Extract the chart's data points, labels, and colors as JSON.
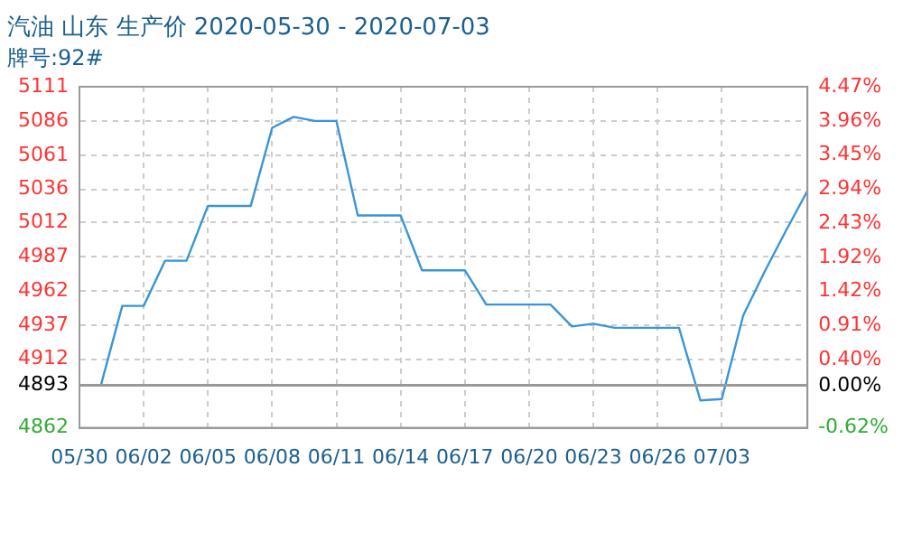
{
  "chart_data": {
    "type": "line",
    "title": "汽油 山东 生产价 2020-05-30 - 2020-07-03",
    "subtitle": "牌号:92#",
    "categories": [
      "05/30",
      null,
      null,
      "06/02",
      null,
      null,
      "06/05",
      null,
      null,
      "06/08",
      null,
      null,
      "06/11",
      null,
      null,
      "06/14",
      null,
      null,
      "06/17",
      null,
      null,
      "06/20",
      null,
      null,
      "06/23",
      null,
      null,
      "06/26",
      null,
      null,
      "07/03",
      null,
      null,
      null,
      null
    ],
    "series": [
      {
        "color": "#3a95d5",
        "values": [
          4893,
          4893,
          4951,
          4951,
          4984,
          4984,
          5024,
          5024,
          5024,
          5081,
          5089,
          5086,
          5086,
          5017,
          5017,
          5017,
          4977,
          4977,
          4977,
          4952,
          4952,
          4952,
          4952,
          4936,
          4938,
          4935,
          4935,
          4935,
          4935,
          4882,
          4883,
          4944,
          4976,
          5006,
          5035
        ]
      }
    ],
    "ylim": [
      4862,
      5111
    ],
    "yticks": [
      4862,
      4893,
      4912,
      4937,
      4962,
      4987,
      5012,
      5036,
      5061,
      5086,
      5111
    ],
    "y2lim": [
      -0.62,
      4.47
    ],
    "y2ticks": [
      {
        "value": -0.62,
        "label": "-0.62%"
      },
      {
        "value": 0,
        "label": "0.00%"
      },
      {
        "value": 0.4,
        "label": "0.40%"
      },
      {
        "value": 0.91,
        "label": "0.91%"
      },
      {
        "value": 1.42,
        "label": "1.42%"
      },
      {
        "value": 1.92,
        "label": "1.92%"
      },
      {
        "value": 2.43,
        "label": "2.43%"
      },
      {
        "value": 2.94,
        "label": "2.94%"
      },
      {
        "value": 3.45,
        "label": "3.45%"
      },
      {
        "value": 3.96,
        "label": "3.96%"
      },
      {
        "value": 4.47,
        "label": "4.47%"
      }
    ],
    "ref_lines": [
      {
        "axis": "y",
        "value": 4893,
        "color": "#999999"
      }
    ],
    "grid": true,
    "legend": false,
    "marker": "none",
    "line_style": "solid"
  }
}
